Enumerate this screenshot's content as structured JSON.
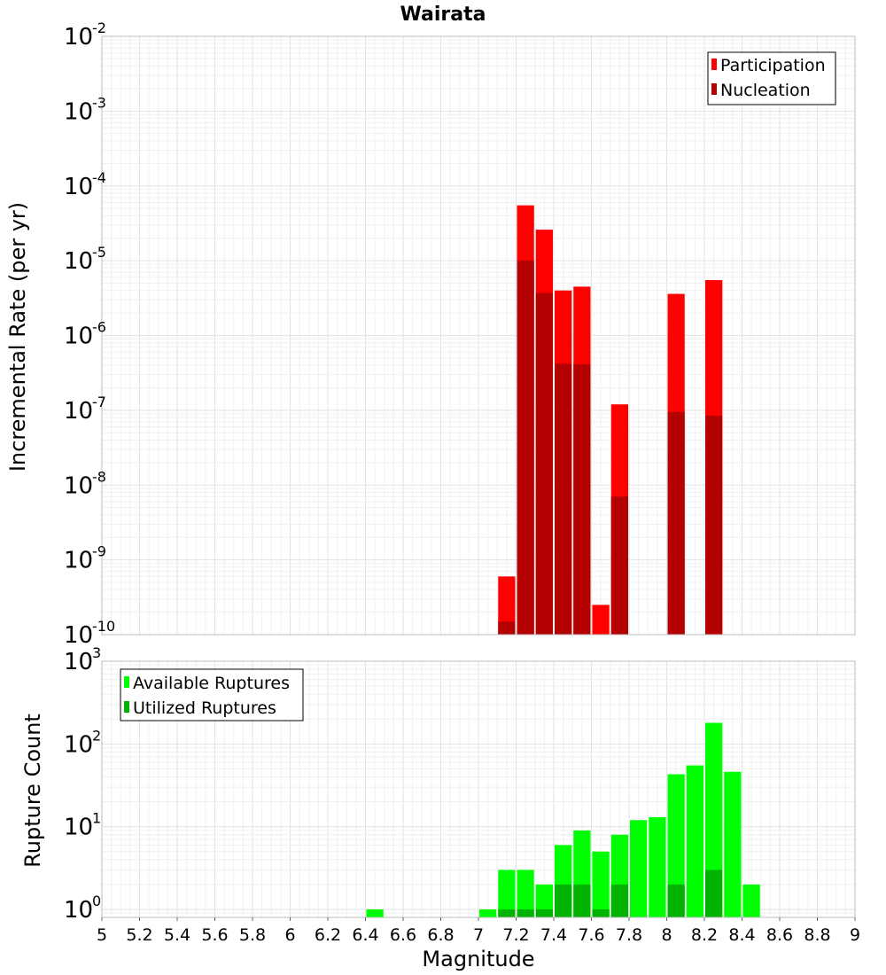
{
  "chart_data": [
    {
      "type": "bar",
      "title": "Wairata",
      "ylabel": "Incremental Rate (per yr)",
      "xlabel": "",
      "yscale": "log",
      "ylim": [
        1e-10,
        0.01
      ],
      "xlim": [
        5,
        9
      ],
      "legend_position": "top-right",
      "bin_width": 0.1,
      "ytick_exponents": [
        "-2",
        "-3",
        "-4",
        "-5",
        "-6",
        "-7",
        "-8",
        "-9",
        "-10"
      ],
      "series": [
        {
          "name": "Participation",
          "color": "#ff0000",
          "x": [
            7.15,
            7.25,
            7.35,
            7.45,
            7.55,
            7.65,
            7.75,
            8.05,
            8.25
          ],
          "values": [
            6e-10,
            5.5e-05,
            2.6e-05,
            4e-06,
            4.5e-06,
            2.5e-10,
            1.2e-07,
            3.6e-06,
            5.5e-06
          ]
        },
        {
          "name": "Nucleation",
          "color": "#b30000",
          "x": [
            7.15,
            7.25,
            7.35,
            7.45,
            7.55,
            7.75,
            8.05,
            8.25
          ],
          "values": [
            1.5e-10,
            1e-05,
            3.7e-06,
            4.2e-07,
            4.1e-07,
            7e-09,
            9.5e-08,
            8.5e-08
          ]
        }
      ]
    },
    {
      "type": "bar",
      "ylabel": "Rupture Count",
      "xlabel": "Magnitude",
      "yscale": "log",
      "ylim": [
        0.8,
        1000
      ],
      "xlim": [
        5,
        9
      ],
      "legend_position": "top-left",
      "bin_width": 0.1,
      "ytick_exponents": [
        "3",
        "2",
        "1",
        "0"
      ],
      "xticks": [
        "5",
        "5.2",
        "5.4",
        "5.6",
        "5.8",
        "6",
        "6.2",
        "6.4",
        "6.6",
        "6.8",
        "7",
        "7.2",
        "7.4",
        "7.6",
        "7.8",
        "8",
        "8.2",
        "8.4",
        "8.6",
        "8.8",
        "9"
      ],
      "series": [
        {
          "name": "Available Ruptures",
          "color": "#00ff00",
          "x": [
            6.45,
            7.05,
            7.15,
            7.25,
            7.35,
            7.45,
            7.55,
            7.65,
            7.75,
            7.85,
            7.95,
            8.05,
            8.15,
            8.25,
            8.35,
            8.45
          ],
          "values": [
            1,
            1,
            3,
            3,
            2,
            6,
            9,
            5,
            8,
            12,
            13,
            43,
            55,
            180,
            46,
            2
          ]
        },
        {
          "name": "Utilized Ruptures",
          "color": "#00b300",
          "x": [
            7.15,
            7.25,
            7.35,
            7.45,
            7.55,
            7.65,
            7.75,
            8.05,
            8.25
          ],
          "values": [
            1,
            1,
            1,
            2,
            2,
            1,
            2,
            2,
            3
          ]
        }
      ]
    }
  ]
}
